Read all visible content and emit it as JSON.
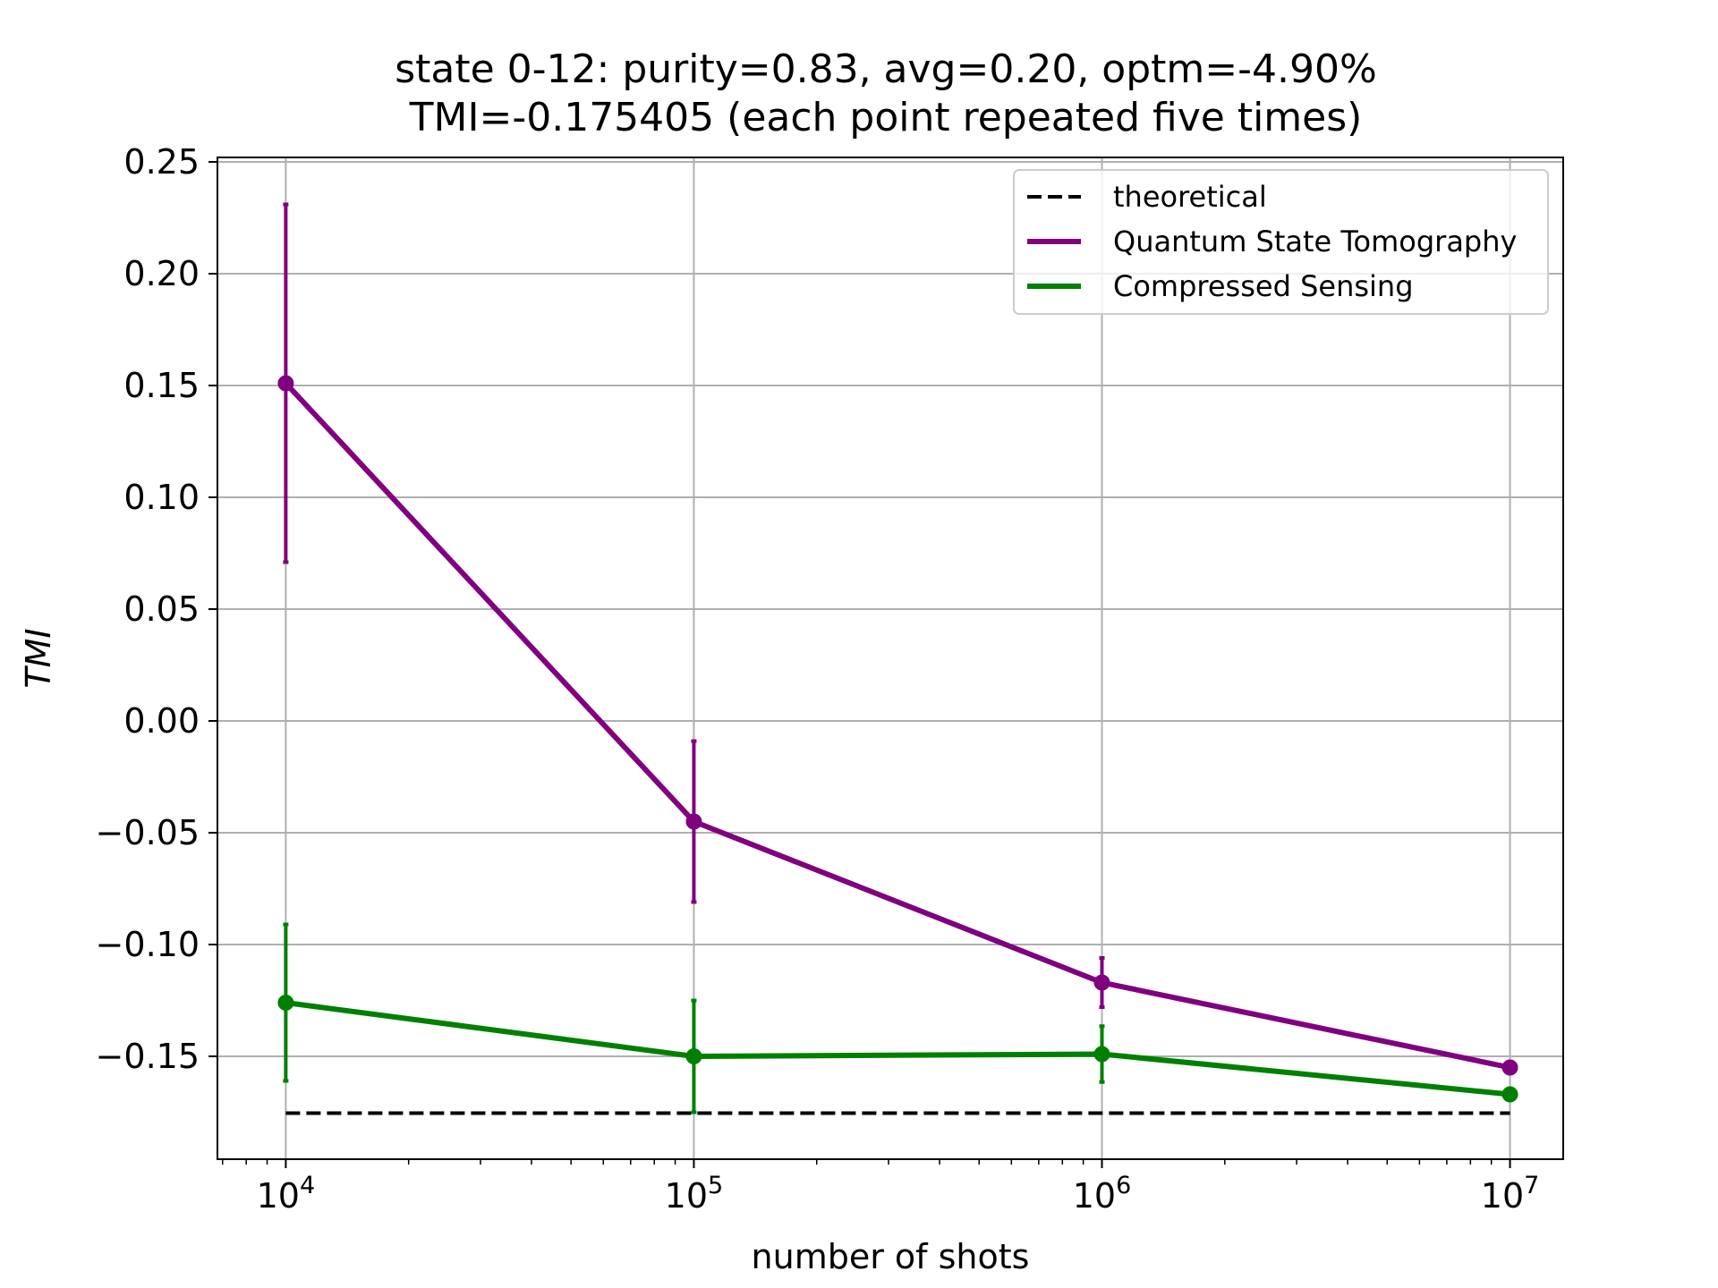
{
  "chart_data": {
    "type": "line",
    "title": [
      "state 0-12: purity=0.83, avg=0.20, optm=-4.90%",
      "TMI=-0.175405 (each point repeated five times)"
    ],
    "xlabel": "number of shots",
    "ylabel": "TMI",
    "x_scale": "log",
    "xlim": [
      6800,
      13500000
    ],
    "ylim": [
      -0.196,
      0.252
    ],
    "x": [
      10000,
      100000,
      1000000,
      10000000
    ],
    "x_ticks": [
      {
        "value": 10000,
        "base": "10",
        "exp": "4"
      },
      {
        "value": 100000,
        "base": "10",
        "exp": "5"
      },
      {
        "value": 1000000,
        "base": "10",
        "exp": "6"
      },
      {
        "value": 10000000,
        "base": "10",
        "exp": "7"
      }
    ],
    "y_ticks": [
      {
        "value": 0.25,
        "label": "0.25"
      },
      {
        "value": 0.2,
        "label": "0.20"
      },
      {
        "value": 0.15,
        "label": "0.15"
      },
      {
        "value": 0.1,
        "label": "0.10"
      },
      {
        "value": 0.05,
        "label": "0.05"
      },
      {
        "value": 0.0,
        "label": "0.00"
      },
      {
        "value": -0.05,
        "label": "−0.05"
      },
      {
        "value": -0.1,
        "label": "−0.10"
      },
      {
        "value": -0.15,
        "label": "−0.15"
      }
    ],
    "grid": true,
    "legend_position": "top-right",
    "series": [
      {
        "name": "theoretical",
        "color": "#000000",
        "style": "dashed",
        "values": [
          -0.175405,
          -0.175405,
          -0.175405,
          -0.175405
        ]
      },
      {
        "name": "Quantum State Tomography",
        "color": "#800080",
        "style": "solid",
        "values": [
          0.151,
          -0.045,
          -0.117,
          -0.155
        ],
        "errors": [
          0.08,
          0.036,
          0.011,
          0.0
        ]
      },
      {
        "name": "Compressed Sensing",
        "color": "#008000",
        "style": "solid",
        "values": [
          -0.126,
          -0.15,
          -0.149,
          -0.167
        ],
        "errors": [
          0.035,
          0.025,
          0.0125,
          0.0
        ]
      }
    ]
  }
}
